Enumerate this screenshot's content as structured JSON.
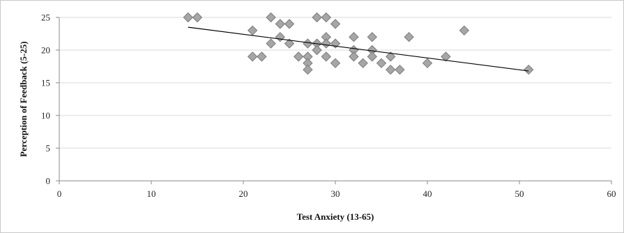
{
  "chart_data": {
    "type": "scatter",
    "title": "",
    "xlabel": "Test Anxiety (13-65)",
    "ylabel": "Perception of Feedback (5-25)",
    "xlim": [
      0,
      60
    ],
    "ylim": [
      0,
      25
    ],
    "x_ticks": [
      "0",
      "10",
      "20",
      "30",
      "40",
      "50",
      "60"
    ],
    "y_ticks": [
      "0",
      "5",
      "10",
      "15",
      "20",
      "25"
    ],
    "grid": "horizontal",
    "legend": "none",
    "marker": "diamond",
    "marker_color": "#a6a6a6",
    "marker_edge_color": "#7a7a7a",
    "trendline": {
      "type": "linear",
      "x": [
        14,
        51
      ],
      "y": [
        23.5,
        16.8
      ],
      "color": "#000000"
    },
    "points": [
      {
        "x": 14,
        "y": 25
      },
      {
        "x": 15,
        "y": 25
      },
      {
        "x": 23,
        "y": 25
      },
      {
        "x": 28,
        "y": 25
      },
      {
        "x": 29,
        "y": 25
      },
      {
        "x": 24,
        "y": 24
      },
      {
        "x": 25,
        "y": 24
      },
      {
        "x": 30,
        "y": 24
      },
      {
        "x": 21,
        "y": 23
      },
      {
        "x": 44,
        "y": 23
      },
      {
        "x": 24,
        "y": 22
      },
      {
        "x": 29,
        "y": 22
      },
      {
        "x": 32,
        "y": 22
      },
      {
        "x": 34,
        "y": 22
      },
      {
        "x": 38,
        "y": 22
      },
      {
        "x": 23,
        "y": 21
      },
      {
        "x": 25,
        "y": 21
      },
      {
        "x": 27,
        "y": 21
      },
      {
        "x": 28,
        "y": 21
      },
      {
        "x": 29,
        "y": 21
      },
      {
        "x": 30,
        "y": 21
      },
      {
        "x": 28,
        "y": 20
      },
      {
        "x": 32,
        "y": 20
      },
      {
        "x": 34,
        "y": 20
      },
      {
        "x": 21,
        "y": 19
      },
      {
        "x": 22,
        "y": 19
      },
      {
        "x": 26,
        "y": 19
      },
      {
        "x": 27,
        "y": 19
      },
      {
        "x": 29,
        "y": 19
      },
      {
        "x": 32,
        "y": 19
      },
      {
        "x": 34,
        "y": 19
      },
      {
        "x": 36,
        "y": 19
      },
      {
        "x": 42,
        "y": 19
      },
      {
        "x": 27,
        "y": 18
      },
      {
        "x": 30,
        "y": 18
      },
      {
        "x": 33,
        "y": 18
      },
      {
        "x": 35,
        "y": 18
      },
      {
        "x": 40,
        "y": 18
      },
      {
        "x": 27,
        "y": 17
      },
      {
        "x": 36,
        "y": 17
      },
      {
        "x": 37,
        "y": 17
      },
      {
        "x": 51,
        "y": 17
      }
    ]
  }
}
